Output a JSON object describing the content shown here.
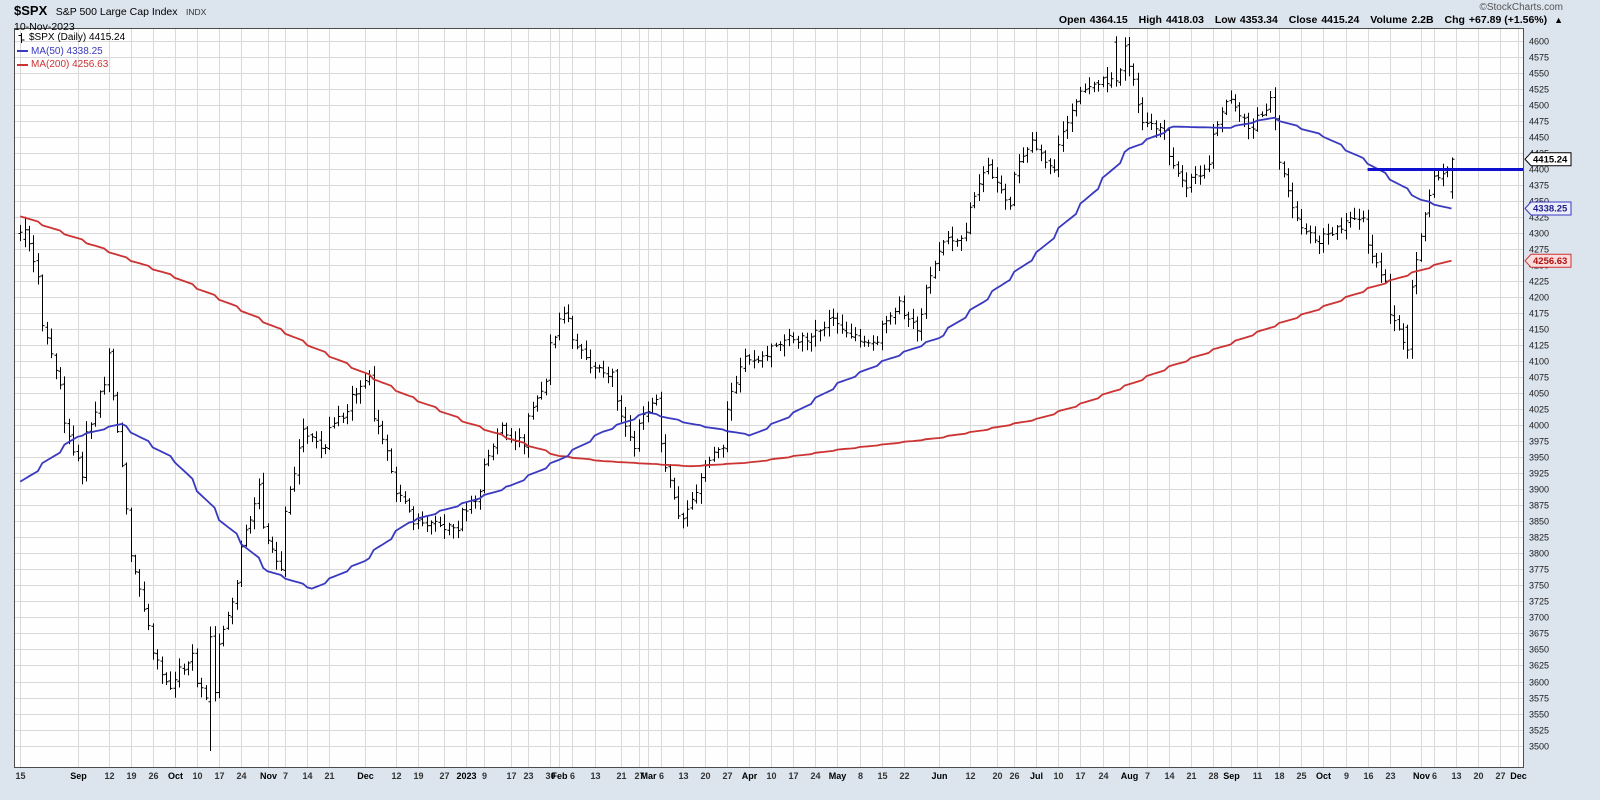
{
  "header": {
    "symbol": "$SPX",
    "name": "S&P 500 Large Cap Index",
    "exchange": "INDX",
    "date": "10-Nov-2023",
    "credit": "©StockCharts.com",
    "quote_items": [
      {
        "label": "Open",
        "value": "4364.15"
      },
      {
        "label": "High",
        "value": "4418.03"
      },
      {
        "label": "Low",
        "value": "4353.34"
      },
      {
        "label": "Close",
        "value": "4415.24"
      },
      {
        "label": "Volume",
        "value": "2.2B"
      },
      {
        "label": "Chg",
        "value": "+67.89 (+1.56%)"
      }
    ],
    "direction": "▲"
  },
  "legend": {
    "main": "$SPX (Daily) 4415.24",
    "ma50": "MA(50) 4338.25",
    "ma200": "MA(200) 4256.63"
  },
  "chart_data": {
    "type": "ohlc-bar",
    "title": "$SPX S&P 500 Large Cap Index Daily",
    "ylim": [
      3465,
      4620
    ],
    "y_ticks": {
      "min": 3500,
      "max": 4600,
      "step": 25
    },
    "x_range": [
      "2022-08-15",
      "2023-12-01"
    ],
    "last_bar_date": "2023-11-10",
    "close_anchors": [
      [
        "2022-08-15",
        4297
      ],
      [
        "2022-08-16",
        4305
      ],
      [
        "2022-08-19",
        4228
      ],
      [
        "2022-08-26",
        4057
      ],
      [
        "2022-09-02",
        3924
      ],
      [
        "2022-09-09",
        4067
      ],
      [
        "2022-09-12",
        4110
      ],
      [
        "2022-09-16",
        3873
      ],
      [
        "2022-09-23",
        3693
      ],
      [
        "2022-09-30",
        3586
      ],
      [
        "2022-10-07",
        3639
      ],
      [
        "2022-10-12",
        3577
      ],
      [
        "2022-10-13",
        3670
      ],
      [
        "2022-10-14",
        3583
      ],
      [
        "2022-10-21",
        3752
      ],
      [
        "2022-10-28",
        3901
      ],
      [
        "2022-11-04",
        3770
      ],
      [
        "2022-11-11",
        3992
      ],
      [
        "2022-11-18",
        3965
      ],
      [
        "2022-11-25",
        4026
      ],
      [
        "2022-12-02",
        4071
      ],
      [
        "2022-12-09",
        3934
      ],
      [
        "2022-12-16",
        3852
      ],
      [
        "2022-12-23",
        3844
      ],
      [
        "2022-12-30",
        3839
      ],
      [
        "2023-01-06",
        3895
      ],
      [
        "2023-01-13",
        3999
      ],
      [
        "2023-01-20",
        3972
      ],
      [
        "2023-01-27",
        4070
      ],
      [
        "2023-02-02",
        4180
      ],
      [
        "2023-02-10",
        4090
      ],
      [
        "2023-02-17",
        4079
      ],
      [
        "2023-02-24",
        3970
      ],
      [
        "2023-03-03",
        4045
      ],
      [
        "2023-03-10",
        3861
      ],
      [
        "2023-03-13",
        3856
      ],
      [
        "2023-03-17",
        3916
      ],
      [
        "2023-03-24",
        3971
      ],
      [
        "2023-03-31",
        4109
      ],
      [
        "2023-04-06",
        4105
      ],
      [
        "2023-04-14",
        4137
      ],
      [
        "2023-04-21",
        4133
      ],
      [
        "2023-04-28",
        4169
      ],
      [
        "2023-05-05",
        4136
      ],
      [
        "2023-05-12",
        4124
      ],
      [
        "2023-05-19",
        4191
      ],
      [
        "2023-05-25",
        4151
      ],
      [
        "2023-06-02",
        4282
      ],
      [
        "2023-06-09",
        4298
      ],
      [
        "2023-06-16",
        4409
      ],
      [
        "2023-06-23",
        4348
      ],
      [
        "2023-06-30",
        4450
      ],
      [
        "2023-07-07",
        4398
      ],
      [
        "2023-07-14",
        4505
      ],
      [
        "2023-07-21",
        4536
      ],
      [
        "2023-07-27",
        4537
      ],
      [
        "2023-07-31",
        4589
      ],
      [
        "2023-08-04",
        4478
      ],
      [
        "2023-08-11",
        4464
      ],
      [
        "2023-08-18",
        4369
      ],
      [
        "2023-08-25",
        4405
      ],
      [
        "2023-09-01",
        4515
      ],
      [
        "2023-09-08",
        4457
      ],
      [
        "2023-09-14",
        4505
      ],
      [
        "2023-09-22",
        4320
      ],
      [
        "2023-09-29",
        4288
      ],
      [
        "2023-10-06",
        4308
      ],
      [
        "2023-10-13",
        4327
      ],
      [
        "2023-10-20",
        4224
      ],
      [
        "2023-10-27",
        4117
      ],
      [
        "2023-11-03",
        4358
      ],
      [
        "2023-11-10",
        4415.24
      ]
    ],
    "key_bars": [
      {
        "date": "2022-08-16",
        "o": 4290.0,
        "h": 4325.28,
        "l": 4277.77,
        "c": 4305.2
      },
      {
        "date": "2022-10-13",
        "o": 3568.38,
        "h": 3685.89,
        "l": 3491.58,
        "c": 3669.91
      },
      {
        "date": "2023-07-27",
        "o": 4598.0,
        "h": 4607.07,
        "l": 4528.56,
        "c": 4537.41
      },
      {
        "date": "2023-10-27",
        "o": 4152.93,
        "h": 4156.7,
        "l": 4103.78,
        "c": 4117.37
      },
      {
        "date": "2023-11-10",
        "o": 4364.15,
        "h": 4418.03,
        "l": 4353.34,
        "c": 4415.24
      }
    ],
    "ma50": {
      "label": "MA(50)",
      "current": 4338.25,
      "color": "#3a3ac0",
      "anchors": [
        [
          "2022-08-15",
          3912
        ],
        [
          "2022-09-01",
          3982
        ],
        [
          "2022-09-15",
          4002
        ],
        [
          "2022-10-03",
          3942
        ],
        [
          "2022-10-17",
          3852
        ],
        [
          "2022-11-01",
          3772
        ],
        [
          "2022-11-15",
          3745
        ],
        [
          "2022-12-01",
          3788
        ],
        [
          "2022-12-15",
          3848
        ],
        [
          "2023-01-03",
          3880
        ],
        [
          "2023-01-17",
          3906
        ],
        [
          "2023-02-01",
          3946
        ],
        [
          "2023-02-15",
          3990
        ],
        [
          "2023-03-01",
          4020
        ],
        [
          "2023-03-15",
          4002
        ],
        [
          "2023-04-03",
          3984
        ],
        [
          "2023-04-17",
          4020
        ],
        [
          "2023-05-01",
          4066
        ],
        [
          "2023-05-15",
          4100
        ],
        [
          "2023-06-01",
          4136
        ],
        [
          "2023-06-15",
          4192
        ],
        [
          "2023-07-03",
          4270
        ],
        [
          "2023-07-17",
          4346
        ],
        [
          "2023-08-01",
          4432
        ],
        [
          "2023-08-15",
          4466
        ],
        [
          "2023-09-01",
          4464
        ],
        [
          "2023-09-15",
          4480
        ],
        [
          "2023-10-02",
          4450
        ],
        [
          "2023-10-16",
          4408
        ],
        [
          "2023-11-01",
          4352
        ],
        [
          "2023-11-10",
          4338.25
        ]
      ]
    },
    "ma200": {
      "label": "MA(200)",
      "current": 4256.63,
      "color": "#cc3333",
      "anchors": [
        [
          "2022-08-15",
          4326
        ],
        [
          "2022-09-01",
          4292
        ],
        [
          "2022-09-15",
          4264
        ],
        [
          "2022-10-03",
          4230
        ],
        [
          "2022-10-17",
          4196
        ],
        [
          "2022-11-01",
          4158
        ],
        [
          "2022-11-15",
          4122
        ],
        [
          "2022-12-01",
          4082
        ],
        [
          "2022-12-15",
          4046
        ],
        [
          "2023-01-03",
          4004
        ],
        [
          "2023-01-17",
          3978
        ],
        [
          "2023-02-01",
          3952
        ],
        [
          "2023-02-15",
          3944
        ],
        [
          "2023-03-01",
          3940
        ],
        [
          "2023-03-15",
          3936
        ],
        [
          "2023-04-03",
          3942
        ],
        [
          "2023-04-17",
          3952
        ],
        [
          "2023-05-01",
          3962
        ],
        [
          "2023-05-15",
          3970
        ],
        [
          "2023-06-01",
          3980
        ],
        [
          "2023-06-15",
          3992
        ],
        [
          "2023-07-03",
          4010
        ],
        [
          "2023-07-17",
          4034
        ],
        [
          "2023-08-01",
          4064
        ],
        [
          "2023-08-15",
          4094
        ],
        [
          "2023-09-01",
          4126
        ],
        [
          "2023-09-15",
          4154
        ],
        [
          "2023-10-02",
          4186
        ],
        [
          "2023-10-16",
          4214
        ],
        [
          "2023-11-01",
          4242
        ],
        [
          "2023-11-10",
          4256.63
        ]
      ]
    },
    "annotation_hline": {
      "value": 4400,
      "start_date": "2023-10-16",
      "color": "#1010d0",
      "stroke_width": 3
    },
    "x_ticks": [
      [
        "2022-08-15",
        "15",
        0
      ],
      [
        "2022-09-01",
        "Sep",
        1
      ],
      [
        "2022-09-12",
        "12",
        0
      ],
      [
        "2022-09-19",
        "19",
        0
      ],
      [
        "2022-09-26",
        "26",
        0
      ],
      [
        "2022-10-03",
        "Oct",
        1
      ],
      [
        "2022-10-10",
        "10",
        0
      ],
      [
        "2022-10-17",
        "17",
        0
      ],
      [
        "2022-10-24",
        "24",
        0
      ],
      [
        "2022-11-01",
        "Nov",
        1
      ],
      [
        "2022-11-07",
        "7",
        0
      ],
      [
        "2022-11-14",
        "14",
        0
      ],
      [
        "2022-11-21",
        "21",
        0
      ],
      [
        "2022-12-01",
        "Dec",
        1
      ],
      [
        "2022-12-12",
        "12",
        0
      ],
      [
        "2022-12-19",
        "19",
        0
      ],
      [
        "2022-12-27",
        "27",
        0
      ],
      [
        "2023-01-03",
        "2023",
        1
      ],
      [
        "2023-01-09",
        "9",
        0
      ],
      [
        "2023-01-17",
        "17",
        0
      ],
      [
        "2023-01-23",
        "23",
        0
      ],
      [
        "2023-01-30",
        "30",
        0
      ],
      [
        "2023-02-01",
        "Feb",
        1
      ],
      [
        "2023-02-06",
        "6",
        0
      ],
      [
        "2023-02-13",
        "13",
        0
      ],
      [
        "2023-02-21",
        "21",
        0
      ],
      [
        "2023-02-27",
        "27",
        0
      ],
      [
        "2023-03-01",
        "Mar",
        1
      ],
      [
        "2023-03-06",
        "6",
        0
      ],
      [
        "2023-03-13",
        "13",
        0
      ],
      [
        "2023-03-20",
        "20",
        0
      ],
      [
        "2023-03-27",
        "27",
        0
      ],
      [
        "2023-04-03",
        "Apr",
        1
      ],
      [
        "2023-04-10",
        "10",
        0
      ],
      [
        "2023-04-17",
        "17",
        0
      ],
      [
        "2023-04-24",
        "24",
        0
      ],
      [
        "2023-05-01",
        "May",
        1
      ],
      [
        "2023-05-08",
        "8",
        0
      ],
      [
        "2023-05-15",
        "15",
        0
      ],
      [
        "2023-05-22",
        "22",
        0
      ],
      [
        "2023-06-01",
        "Jun",
        1
      ],
      [
        "2023-06-12",
        "12",
        0
      ],
      [
        "2023-06-20",
        "20",
        0
      ],
      [
        "2023-06-26",
        "26",
        0
      ],
      [
        "2023-07-03",
        "Jul",
        1
      ],
      [
        "2023-07-10",
        "10",
        0
      ],
      [
        "2023-07-17",
        "17",
        0
      ],
      [
        "2023-07-24",
        "24",
        0
      ],
      [
        "2023-08-01",
        "Aug",
        1
      ],
      [
        "2023-08-07",
        "7",
        0
      ],
      [
        "2023-08-14",
        "14",
        0
      ],
      [
        "2023-08-21",
        "21",
        0
      ],
      [
        "2023-08-28",
        "28",
        0
      ],
      [
        "2023-09-01",
        "Sep",
        1
      ],
      [
        "2023-09-11",
        "11",
        0
      ],
      [
        "2023-09-18",
        "18",
        0
      ],
      [
        "2023-09-25",
        "25",
        0
      ],
      [
        "2023-10-02",
        "Oct",
        1
      ],
      [
        "2023-10-09",
        "9",
        0
      ],
      [
        "2023-10-16",
        "16",
        0
      ],
      [
        "2023-10-23",
        "23",
        0
      ],
      [
        "2023-11-01",
        "Nov",
        1
      ],
      [
        "2023-11-06",
        "6",
        0
      ],
      [
        "2023-11-13",
        "13",
        0
      ],
      [
        "2023-11-20",
        "20",
        0
      ],
      [
        "2023-11-27",
        "27",
        0
      ],
      [
        "2023-12-01",
        "Dec",
        1
      ]
    ],
    "callouts": [
      {
        "name": "close",
        "value": 4415.24,
        "label": "4415.24",
        "bg": "#ffffff",
        "border": "#000000",
        "text": "#000000"
      },
      {
        "name": "ma50",
        "value": 4338.25,
        "label": "4338.25",
        "bg": "#eceefc",
        "border": "#3a3ac0",
        "text": "#20208c"
      },
      {
        "name": "ma200",
        "value": 4256.63,
        "label": "4256.63",
        "bg": "#fbdcdc",
        "border": "#cc3333",
        "text": "#b01010"
      }
    ],
    "colors": {
      "bar": "#000000",
      "grid": "#d9d9d9",
      "plot_bg": "#fefefe",
      "plot_border": "#4d4d4d",
      "page_bg": "#dce4ee",
      "axis_text": "#1a1a1a",
      "month_text": "#000000",
      "day_text": "#333333"
    }
  }
}
